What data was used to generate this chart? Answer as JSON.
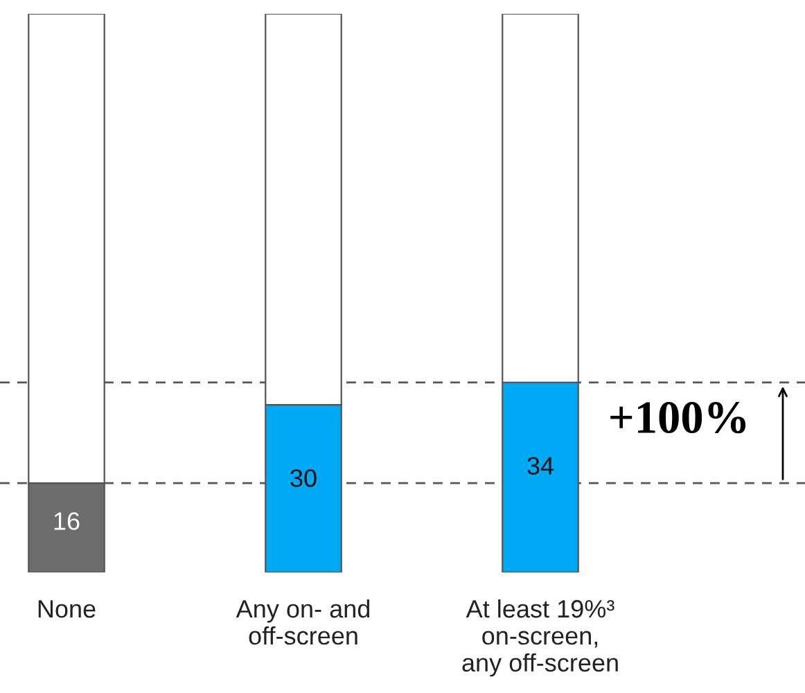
{
  "chart_data": {
    "type": "bar",
    "stacked": true,
    "categories": [
      "None",
      "Any on- and\noff-screen",
      "At least 19%³\non-screen,\nany off-screen"
    ],
    "series": [
      {
        "colors": [
          "#6d6d6d",
          "#00a9f4",
          "#00a9f4"
        ],
        "values": [
          16,
          30,
          34
        ],
        "value_labels": [
          "16",
          "30",
          "34"
        ]
      },
      {
        "color": "#ffffff",
        "values": [
          84,
          70,
          66
        ]
      }
    ],
    "ref_lines": [
      {
        "axis": "y",
        "value": 16,
        "color": "#555555",
        "line_style": "dashed"
      },
      {
        "axis": "y",
        "value": 34,
        "color": "#555555",
        "line_style": "dashed"
      }
    ],
    "annotations": [
      "+100%"
    ],
    "legend": false
  }
}
